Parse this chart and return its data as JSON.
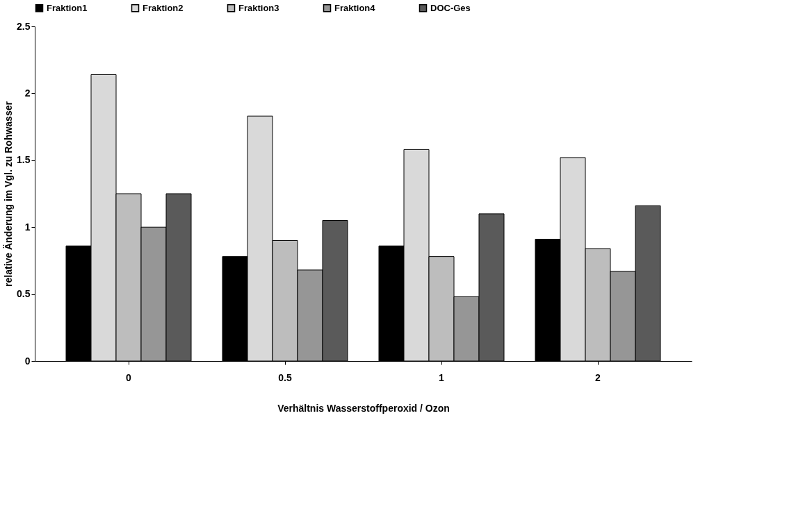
{
  "chart_data": {
    "type": "bar",
    "xlabel": "Verhältnis Wasserstoffperoxid / Ozon",
    "ylabel": "relative Änderung im Vgl. zu Rohwasser",
    "categories": [
      "0",
      "0.5",
      "1",
      "2"
    ],
    "series": [
      {
        "name": "Fraktion1",
        "color": "#000000",
        "values": [
          0.86,
          0.78,
          0.86,
          0.91
        ]
      },
      {
        "name": "Fraktion2",
        "color": "#d9d9d9",
        "values": [
          2.14,
          1.83,
          1.58,
          1.52
        ]
      },
      {
        "name": "Fraktion3",
        "color": "#bdbdbd",
        "values": [
          1.25,
          0.9,
          0.78,
          0.84
        ]
      },
      {
        "name": "Fraktion4",
        "color": "#969696",
        "values": [
          1.0,
          0.68,
          0.48,
          0.67
        ]
      },
      {
        "name": "DOC-Ges",
        "color": "#5a5a5a",
        "values": [
          1.25,
          1.05,
          1.1,
          1.16
        ]
      }
    ],
    "ylim": [
      0,
      2.5
    ],
    "yticks": [
      0,
      0.5,
      1,
      1.5,
      2,
      2.5
    ],
    "grid": false,
    "legend": "top"
  }
}
